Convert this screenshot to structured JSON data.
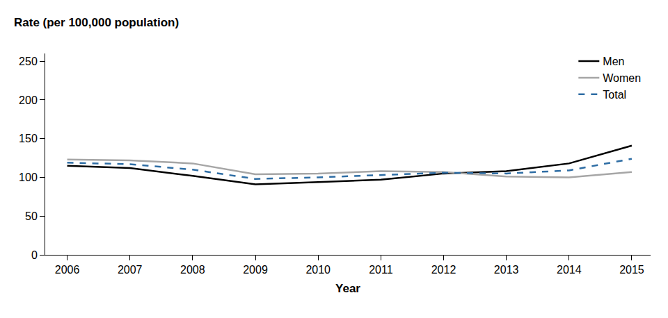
{
  "chart_data": {
    "type": "line",
    "y_label": "Rate (per 100,000 population)",
    "x_label": "Year",
    "x": [
      2006,
      2007,
      2008,
      2009,
      2010,
      2011,
      2012,
      2013,
      2014,
      2015
    ],
    "series": [
      {
        "name": "Men",
        "color": "#000000",
        "line_style": "solid",
        "values": [
          115,
          112,
          102,
          91,
          94,
          97,
          105,
          108,
          118,
          141
        ]
      },
      {
        "name": "Women",
        "color": "#a6a6a6",
        "line_style": "solid",
        "values": [
          123,
          122,
          118,
          104,
          105,
          108,
          107,
          101,
          100,
          107
        ]
      },
      {
        "name": "Total",
        "color": "#2e6da4",
        "line_style": "dash",
        "values": [
          119,
          117,
          110,
          98,
          100,
          103,
          106,
          105,
          109,
          124
        ]
      }
    ],
    "xlim": [
      2005.65,
      2015.3
    ],
    "xticks": [
      2006,
      2007,
      2008,
      2009,
      2010,
      2011,
      2012,
      2013,
      2014,
      2015
    ],
    "ylim": [
      0,
      260
    ],
    "yticks": [
      0,
      50,
      100,
      150,
      200,
      250
    ],
    "grid": false,
    "legend": "top right"
  }
}
